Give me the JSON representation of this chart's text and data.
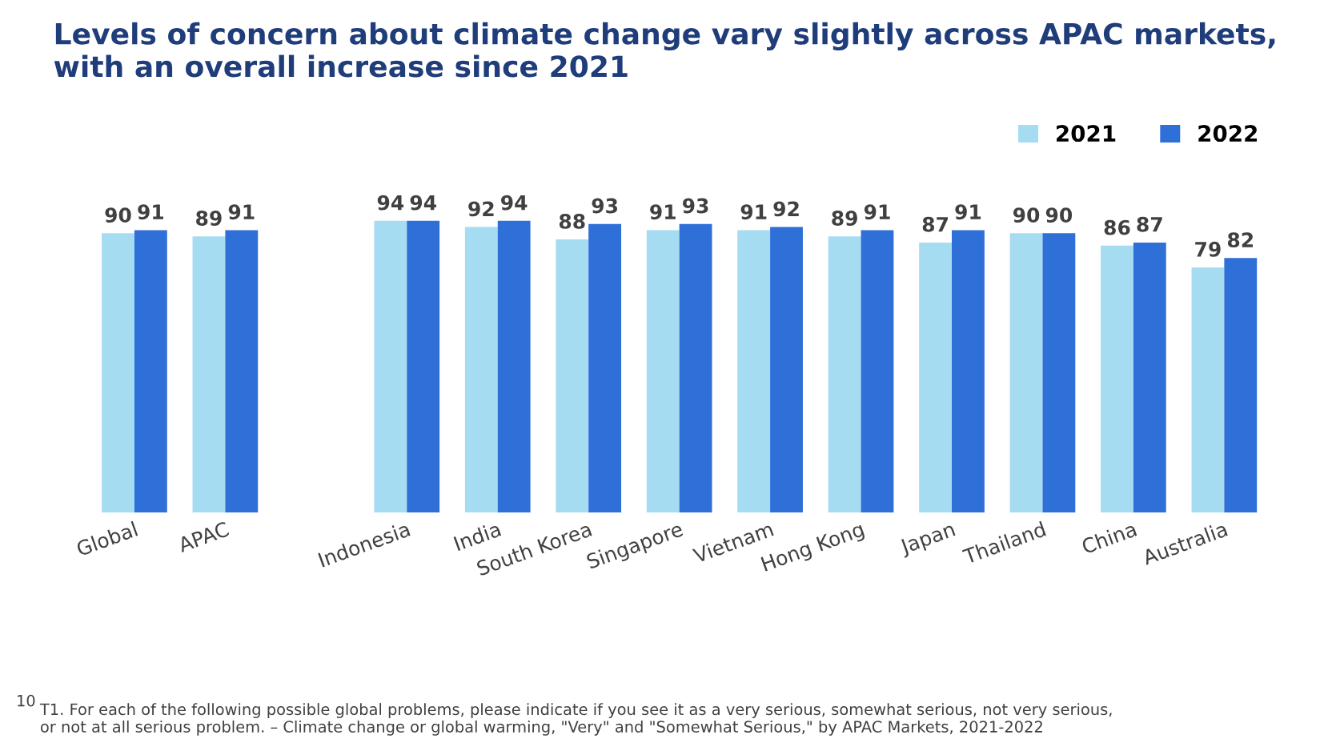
{
  "chart_data": {
    "type": "bar",
    "title": "Levels of concern about climate change vary slightly across APAC markets, with an overall increase since 2021",
    "categories": [
      "Global",
      "APAC",
      null,
      "Indonesia",
      "India",
      "South Korea",
      "Singapore",
      "Vietnam",
      "Hong Kong",
      "Japan",
      "Thailand",
      "China",
      "Australia"
    ],
    "series": [
      {
        "name": "2021",
        "color": "#a6dcf2",
        "values": [
          90,
          89,
          null,
          94,
          92,
          88,
          91,
          91,
          89,
          87,
          90,
          86,
          79
        ]
      },
      {
        "name": "2022",
        "color": "#2f6fd8",
        "values": [
          91,
          91,
          null,
          94,
          94,
          93,
          93,
          92,
          91,
          91,
          90,
          87,
          82
        ]
      }
    ],
    "data_labels": true,
    "legend": "top right",
    "grid": false,
    "tick_labels": "x",
    "annotations": [
      "10",
      "T1. For each of the following possible global problems, please indicate if you see it as a very serious, somewhat serious, not very serious, or not at all serious problem. – Climate change or global warming, \"Very\" and \"Somewhat Serious,\" by APAC Markets, 2021-2022"
    ]
  }
}
